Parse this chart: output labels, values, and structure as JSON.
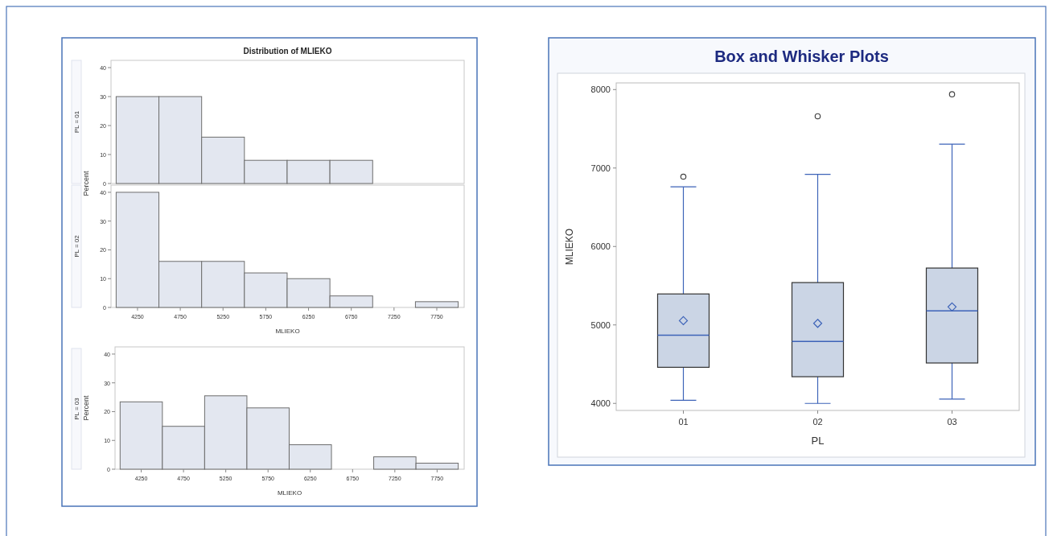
{
  "chart_data": [
    {
      "type": "histogram",
      "title": "Distribution of MLIEKO",
      "subtitle": "PL = 01",
      "ylabel": "Percent",
      "bins": [
        4000,
        4500,
        5000,
        5500,
        6000,
        6500,
        7000,
        7500,
        8000
      ],
      "values": [
        30,
        30,
        16,
        8,
        8,
        8,
        0,
        0
      ],
      "color": "#e3e7f0",
      "xlim": [
        3940,
        8070
      ],
      "ylim": [
        0,
        42.5
      ],
      "yticks": [
        0,
        10,
        20,
        30,
        40
      ],
      "tick_labels": "y"
    },
    {
      "type": "histogram",
      "subtitle": "PL = 02",
      "xlabel": "MLIEKO",
      "bins": [
        4000,
        4500,
        5000,
        5500,
        6000,
        6500,
        7000,
        7500,
        8000
      ],
      "values": [
        40,
        16,
        16,
        12,
        10,
        4,
        0,
        2
      ],
      "color": "#e3e7f0",
      "xlim": [
        3940,
        8070
      ],
      "xticks": [
        4250,
        4750,
        5250,
        5750,
        6250,
        6750,
        7250,
        7750
      ],
      "ylim": [
        0,
        42.5
      ],
      "yticks": [
        0,
        10,
        20,
        30,
        40
      ]
    },
    {
      "type": "histogram",
      "subtitle": "PL = 03",
      "xlabel": "MLIEKO",
      "ylabel": "Percent",
      "bins": [
        4000,
        4500,
        5000,
        5500,
        6000,
        6500,
        7000,
        7500,
        8000
      ],
      "values": [
        23.4,
        14.9,
        25.5,
        21.3,
        8.5,
        0,
        4.3,
        2.1
      ],
      "color": "#e3e7f0",
      "xlim": [
        3940,
        8070
      ],
      "xticks": [
        4250,
        4750,
        5250,
        5750,
        6250,
        6750,
        7250,
        7750
      ],
      "ylim": [
        0,
        42.5
      ],
      "yticks": [
        0,
        10,
        20,
        30,
        40
      ]
    },
    {
      "type": "box",
      "title": "Box and Whisker Plots",
      "xlabel": "PL",
      "ylabel": "MLIEKO",
      "categories": [
        "01",
        "02",
        "03"
      ],
      "color": "#cbd5e5",
      "ylim": [
        3910,
        8085
      ],
      "yticks": [
        4000,
        5000,
        6000,
        7000,
        8000
      ],
      "boxes": [
        {
          "low": 4040,
          "q1": 4460,
          "median": 4870,
          "q3": 5395,
          "high": 6760,
          "mean": 5055,
          "outliers": [
            6890
          ]
        },
        {
          "low": 4000,
          "q1": 4340,
          "median": 4790,
          "q3": 5540,
          "high": 6920,
          "mean": 5020,
          "outliers": [
            7660
          ]
        },
        {
          "low": 4055,
          "q1": 4515,
          "median": 5180,
          "q3": 5725,
          "high": 7305,
          "mean": 5230,
          "outliers": [
            7940
          ]
        }
      ]
    }
  ]
}
